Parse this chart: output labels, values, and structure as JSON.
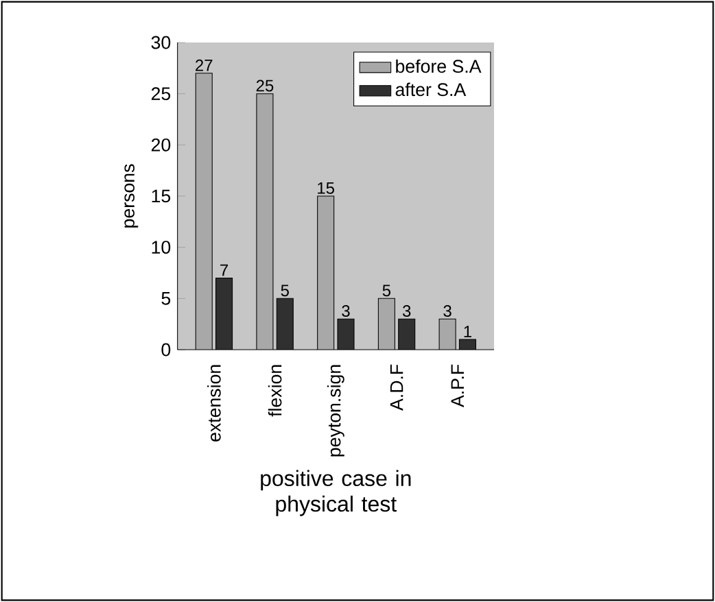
{
  "chart_data": {
    "type": "bar",
    "xlabel": "positive case in physical test",
    "ylabel": "persons",
    "categories": [
      "extension",
      "flexion",
      "peyton.sign",
      "A.D.F",
      "A.P.F"
    ],
    "series": [
      {
        "name": "before S.A",
        "color": "#a8a8a8",
        "values": [
          27,
          25,
          15,
          5,
          3
        ]
      },
      {
        "name": "after S.A",
        "color": "#303030",
        "values": [
          7,
          5,
          3,
          3,
          1
        ]
      }
    ],
    "ylim": [
      0,
      30
    ],
    "yticks": [
      0,
      5,
      10,
      15,
      20,
      25,
      30
    ],
    "data_labels": true,
    "legend": "top right"
  }
}
